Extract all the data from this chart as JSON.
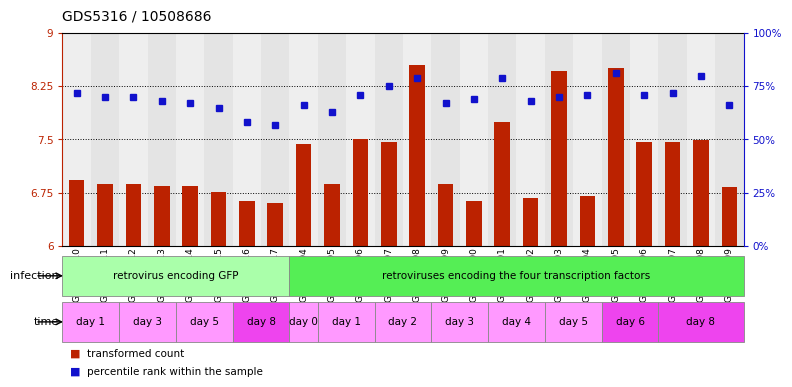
{
  "title": "GDS5316 / 10508686",
  "samples": [
    "GSM943810",
    "GSM943811",
    "GSM943812",
    "GSM943813",
    "GSM943814",
    "GSM943815",
    "GSM943816",
    "GSM943817",
    "GSM943794",
    "GSM943795",
    "GSM943796",
    "GSM943797",
    "GSM943798",
    "GSM943799",
    "GSM943800",
    "GSM943801",
    "GSM943802",
    "GSM943803",
    "GSM943804",
    "GSM943805",
    "GSM943806",
    "GSM943807",
    "GSM943808",
    "GSM943809"
  ],
  "red_values": [
    6.93,
    6.88,
    6.87,
    6.84,
    6.84,
    6.76,
    6.63,
    6.6,
    7.44,
    6.88,
    7.5,
    7.46,
    8.55,
    6.88,
    6.63,
    7.75,
    6.67,
    8.47,
    6.7,
    8.5,
    7.46,
    7.47,
    7.49,
    6.83
  ],
  "blue_values": [
    72,
    70,
    70,
    68,
    67,
    65,
    58,
    57,
    66,
    63,
    71,
    75,
    79,
    67,
    69,
    79,
    68,
    70,
    71,
    81,
    71,
    72,
    80,
    66
  ],
  "ylim_left": [
    6,
    9
  ],
  "ylim_right": [
    0,
    100
  ],
  "yticks_left": [
    6,
    6.75,
    7.5,
    8.25,
    9
  ],
  "yticks_right": [
    0,
    25,
    50,
    75,
    100
  ],
  "ytick_labels_left": [
    "6",
    "6.75",
    "7.5",
    "8.25",
    "9"
  ],
  "ytick_labels_right": [
    "0%",
    "25%",
    "50%",
    "75%",
    "100%"
  ],
  "bar_color": "#BB2200",
  "dot_color": "#1111CC",
  "infection_groups": [
    {
      "label": "retrovirus encoding GFP",
      "start": 0,
      "end": 8,
      "color": "#AAFFAA"
    },
    {
      "label": "retroviruses encoding the four transcription factors",
      "start": 8,
      "end": 24,
      "color": "#55EE55"
    }
  ],
  "time_groups": [
    {
      "label": "day 1",
      "start": 0,
      "end": 2,
      "color": "#FF99FF"
    },
    {
      "label": "day 3",
      "start": 2,
      "end": 4,
      "color": "#FF99FF"
    },
    {
      "label": "day 5",
      "start": 4,
      "end": 6,
      "color": "#FF99FF"
    },
    {
      "label": "day 8",
      "start": 6,
      "end": 8,
      "color": "#EE44EE"
    },
    {
      "label": "day 0",
      "start": 8,
      "end": 9,
      "color": "#FF99FF"
    },
    {
      "label": "day 1",
      "start": 9,
      "end": 11,
      "color": "#FF99FF"
    },
    {
      "label": "day 2",
      "start": 11,
      "end": 13,
      "color": "#FF99FF"
    },
    {
      "label": "day 3",
      "start": 13,
      "end": 15,
      "color": "#FF99FF"
    },
    {
      "label": "day 4",
      "start": 15,
      "end": 17,
      "color": "#FF99FF"
    },
    {
      "label": "day 5",
      "start": 17,
      "end": 19,
      "color": "#FF99FF"
    },
    {
      "label": "day 6",
      "start": 19,
      "end": 21,
      "color": "#EE44EE"
    },
    {
      "label": "day 8",
      "start": 21,
      "end": 24,
      "color": "#EE44EE"
    }
  ],
  "legend_items": [
    {
      "label": "transformed count",
      "color": "#BB2200"
    },
    {
      "label": "percentile rank within the sample",
      "color": "#1111CC"
    }
  ],
  "bg_color": "#FFFFFF",
  "grid_color": "#000000",
  "tick_label_color_left": "#BB2200",
  "tick_label_color_right": "#1111CC",
  "title_fontsize": 10,
  "tick_fontsize": 7.5,
  "sample_fontsize": 6.5,
  "row_label_fontsize": 8,
  "group_label_fontsize": 7.5
}
